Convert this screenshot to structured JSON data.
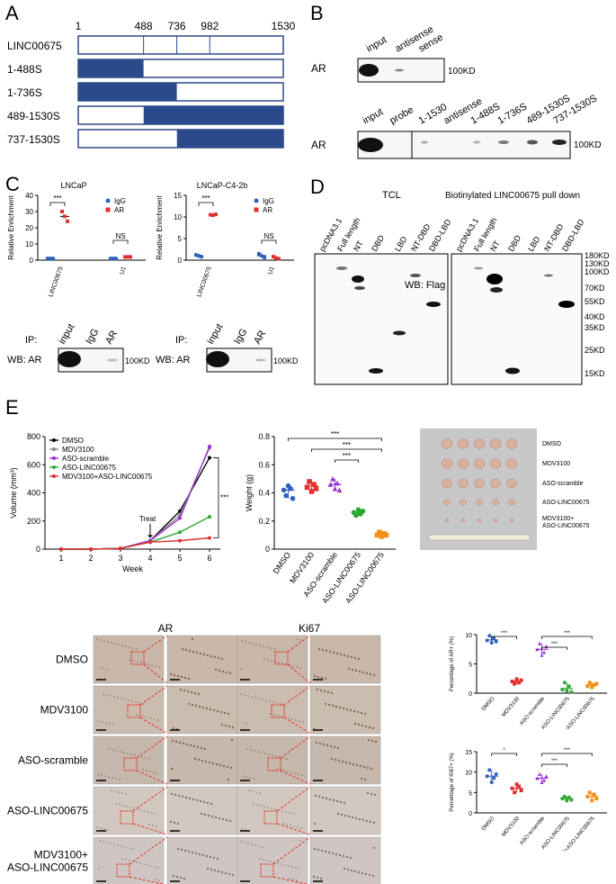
{
  "panels": {
    "A": {
      "letter": "A",
      "positions": [
        "1",
        "488",
        "736",
        "982",
        "1530"
      ],
      "constructs": [
        {
          "name": "LINC00675",
          "filled": [
            0,
            0
          ]
        },
        {
          "name": "1-488S",
          "filled": [
            1,
            488
          ]
        },
        {
          "name": "1-736S",
          "filled": [
            1,
            736
          ]
        },
        {
          "name": "489-1530S",
          "filled": [
            489,
            1530
          ]
        },
        {
          "name": "737-1530S",
          "filled": [
            737,
            1530
          ]
        }
      ],
      "fill_color": "#2b4a8c"
    },
    "B": {
      "letter": "B",
      "blot1": {
        "label": "AR",
        "lanes": [
          "input",
          "antisense",
          "sense"
        ],
        "mw": "100KD"
      },
      "blot2": {
        "label": "AR",
        "lanes": [
          "input",
          "probe",
          "1-1530",
          "antisense",
          "1-488S",
          "1-736S",
          "489-1530S",
          "737-1530S"
        ],
        "mw": "100KD"
      }
    },
    "C": {
      "letter": "C",
      "lncap_title": "LNCaP",
      "c42b_title": "LNCaP-C4-2b",
      "ylabel": "Relative Enrichment",
      "legend": [
        "IgG",
        "AR"
      ],
      "sig": [
        "***",
        "NS"
      ],
      "ip_label": "IP:",
      "wb_label": "WB: AR",
      "ip_lanes": [
        "input",
        "IgG",
        "AR"
      ],
      "mw": "100KD"
    },
    "D": {
      "letter": "D",
      "tcl": "TCL",
      "pulldown": "Biotinylated LINC00675 pull down",
      "lanes": [
        "pcDNA3.1",
        "Full length",
        "NT",
        "DBD",
        "LBD",
        "NT-DBD",
        "DBD-LBD"
      ],
      "wb": "WB: Flag",
      "mw": [
        "180KD",
        "130KD",
        "100KD",
        "70KD",
        "55KD",
        "40KD",
        "35KD",
        "25KD",
        "15KD"
      ]
    },
    "E": {
      "letter": "E",
      "growth_legend": [
        "DMSO",
        "MDV3100",
        "ASO-scramble",
        "ASO-LINC00675",
        "MDV3100+ASO-LINC00675"
      ],
      "treat": "Treat",
      "weight_ylabel": "Weight (g)",
      "weight_groups": [
        "DMSO",
        "MDV3100",
        "ASO-scramble",
        "ASO-LINC00675",
        "MDV3100+ASO-LINC00675"
      ],
      "sig": [
        "***",
        "***",
        "***",
        "***"
      ],
      "photo_labels": [
        "DMSO",
        "MDV3100",
        "ASO-scramble",
        "ASO-LINC00675",
        "MDV3100+\nASO-LINC00675"
      ],
      "ihc_cols": [
        "AR",
        "Ki67"
      ],
      "ihc_rows": [
        "DMSO",
        "MDV3100",
        "ASO-scramble",
        "ASO-LINC00675",
        "MDV3100+\nASO-LINC00675"
      ],
      "ar_ylabel": "Percentage of AR+ (%)",
      "ki67_ylabel": "Percentage of Ki67+ (%)",
      "ar_sig": [
        "***",
        "***",
        "***"
      ],
      "ki67_sig": [
        "*",
        "***",
        "***"
      ]
    }
  },
  "chart_data": [
    {
      "type": "line",
      "panel": "E-growth",
      "xlabel": "Week",
      "ylabel": "Volume (mm³)",
      "x": [
        1,
        2,
        3,
        4,
        5,
        6
      ],
      "ylim": [
        0,
        800
      ],
      "yticks": [
        0,
        200,
        400,
        600,
        800
      ],
      "series": [
        {
          "name": "DMSO",
          "color": "#000000",
          "values": [
            0,
            0,
            5,
            60,
            270,
            650
          ]
        },
        {
          "name": "MDV3100",
          "color": "#888888",
          "values": [
            0,
            0,
            5,
            60,
            240,
            720
          ]
        },
        {
          "name": "ASO-scramble",
          "color": "#9b30d0",
          "values": [
            0,
            0,
            5,
            60,
            220,
            730
          ]
        },
        {
          "name": "ASO-LINC00675",
          "color": "#2aa830",
          "values": [
            0,
            0,
            5,
            50,
            120,
            230
          ]
        },
        {
          "name": "MDV3100+ASO-LINC00675",
          "color": "#e03030",
          "values": [
            0,
            0,
            5,
            50,
            60,
            80
          ]
        }
      ]
    },
    {
      "type": "scatter",
      "panel": "E-weight",
      "ylabel": "Weight (g)",
      "ylim": [
        0,
        0.8
      ],
      "yticks": [
        0.0,
        0.2,
        0.4,
        0.6,
        0.8
      ],
      "categories": [
        "DMSO",
        "MDV3100",
        "ASO-scramble",
        "ASO-LINC00675",
        "MDV3100+ASO-LINC00675"
      ],
      "colors": [
        "#3060c0",
        "#e03030",
        "#9b30d0",
        "#2aa830",
        "#f0901a"
      ],
      "points": [
        [
          0.42,
          0.38,
          0.45,
          0.43,
          0.36
        ],
        [
          0.44,
          0.48,
          0.41,
          0.46,
          0.43
        ],
        [
          0.46,
          0.5,
          0.43,
          0.47,
          0.42
        ],
        [
          0.26,
          0.24,
          0.28,
          0.25,
          0.27
        ],
        [
          0.1,
          0.12,
          0.09,
          0.11,
          0.1
        ]
      ],
      "means": [
        0.42,
        0.45,
        0.46,
        0.26,
        0.1
      ]
    },
    {
      "type": "scatter",
      "panel": "E-AR",
      "ylabel": "Percentage of AR+ (%)",
      "ylim": [
        0,
        10
      ],
      "yticks": [
        0,
        5,
        10
      ],
      "categories": [
        "DMSO",
        "MDV3100",
        "ASO-scramble",
        "ASO-LINC00675",
        "MDV3100+ASO-LINC00675"
      ],
      "colors": [
        "#3060c0",
        "#e03030",
        "#9b30d0",
        "#2aa830",
        "#f0901a"
      ],
      "points": [
        [
          9.0,
          9.8,
          8.6,
          9.4,
          8.8
        ],
        [
          2.0,
          1.6,
          2.4,
          1.8,
          2.2
        ],
        [
          7.5,
          8.5,
          6.5,
          7.0,
          8.0
        ],
        [
          0.6,
          1.8,
          0.4,
          1.2,
          0.2
        ],
        [
          1.2,
          1.8,
          1.0,
          1.4,
          1.6
        ]
      ],
      "means": [
        9.1,
        2.0,
        7.5,
        0.8,
        1.4
      ]
    },
    {
      "type": "scatter",
      "panel": "E-Ki67",
      "ylabel": "Percentage of Ki67+ (%)",
      "ylim": [
        0,
        15
      ],
      "yticks": [
        0,
        5,
        10,
        15
      ],
      "categories": [
        "DMSO",
        "MDV3100",
        "ASO-scramble",
        "ASO-LINC00675",
        "MDV3100+ASO-LINC00675"
      ],
      "colors": [
        "#3060c0",
        "#e03030",
        "#9b30d0",
        "#2aa830",
        "#f0901a"
      ],
      "points": [
        [
          9.0,
          10.5,
          7.5,
          8.5,
          9.5
        ],
        [
          6.0,
          5.0,
          7.0,
          6.5,
          5.5
        ],
        [
          8.5,
          9.5,
          7.5,
          8.0,
          9.0
        ],
        [
          3.5,
          4.0,
          3.0,
          3.8,
          3.2
        ],
        [
          4.0,
          5.0,
          3.0,
          4.5,
          3.5
        ]
      ],
      "means": [
        9.0,
        6.0,
        8.5,
        3.5,
        4.0
      ]
    },
    {
      "type": "scatter",
      "panel": "C-LNCaP",
      "ylabel": "Relative Enrichment",
      "ylim": [
        0,
        40
      ],
      "yticks": [
        0,
        10,
        20,
        30,
        40
      ],
      "categories": [
        "LINC00675",
        "U1"
      ],
      "series": [
        {
          "name": "IgG",
          "color": "#3060c0",
          "values": [
            [
              1,
              1,
              1
            ],
            [
              1,
              1,
              1
            ]
          ]
        },
        {
          "name": "AR",
          "color": "#e03030",
          "values": [
            [
              30,
              27,
              24
            ],
            [
              2,
              2,
              2
            ]
          ]
        }
      ]
    },
    {
      "type": "scatter",
      "panel": "C-C4-2b",
      "ylabel": "Relative Enrichment",
      "ylim": [
        0,
        15
      ],
      "yticks": [
        0,
        5,
        10,
        15
      ],
      "categories": [
        "LINC00675",
        "U1"
      ],
      "series": [
        {
          "name": "IgG",
          "color": "#3060c0",
          "values": [
            [
              1.2,
              1.0,
              0.8
            ],
            [
              1.5,
              1.0,
              0.6
            ]
          ]
        },
        {
          "name": "AR",
          "color": "#e03030",
          "values": [
            [
              10.5,
              10.4,
              10.6
            ],
            [
              0.8,
              0.5,
              0.3
            ]
          ]
        }
      ]
    }
  ]
}
